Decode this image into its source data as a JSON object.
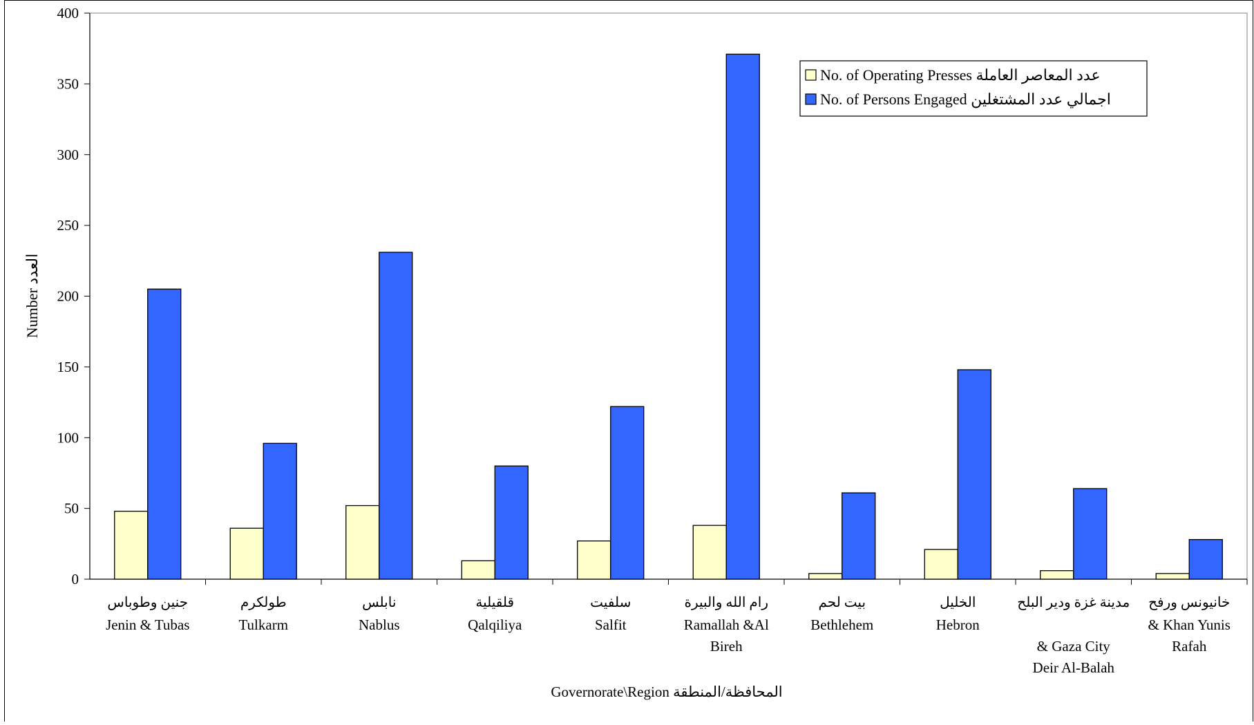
{
  "chart_data": {
    "type": "bar",
    "title": "",
    "xlabel": "Governorate\\Region  المحافظة/المنطقة",
    "ylabel": "Number  العدد",
    "ylim": [
      0,
      400
    ],
    "yticks": [
      0,
      50,
      100,
      150,
      200,
      250,
      300,
      350,
      400
    ],
    "grid": false,
    "legend_position": "top-right",
    "categories": [
      {
        "ar": "جنين وطوباس",
        "en": [
          "Jenin & Tubas"
        ]
      },
      {
        "ar": "طولكرم",
        "en": [
          "Tulkarm"
        ]
      },
      {
        "ar": "نابلس",
        "en": [
          "Nablus"
        ]
      },
      {
        "ar": "قلقيلية",
        "en": [
          "Qalqiliya"
        ]
      },
      {
        "ar": "سلفيت",
        "en": [
          "Salfit"
        ]
      },
      {
        "ar": "رام الله والبيرة",
        "en": [
          "Ramallah &Al",
          "Bireh"
        ]
      },
      {
        "ar": "بيت لحم",
        "en": [
          "Bethlehem"
        ]
      },
      {
        "ar": "الخليل",
        "en": [
          "Hebron"
        ]
      },
      {
        "ar": "مدينة غزة ودير البلح",
        "en": [
          "",
          "& Gaza City",
          "Deir Al-Balah"
        ]
      },
      {
        "ar": "خانيونس ورفح",
        "en": [
          "& Khan Yunis",
          "Rafah"
        ]
      }
    ],
    "series": [
      {
        "name": "No. of  Operating Presses عدد المعاصر  العاملة",
        "color": "#ffffcc",
        "values": [
          48,
          36,
          52,
          13,
          27,
          38,
          4,
          21,
          6,
          4
        ]
      },
      {
        "name": "No. of  Persons  Engaged اجمالي عدد المشتغلين",
        "color": "#3366ff",
        "values": [
          205,
          96,
          231,
          80,
          122,
          371,
          61,
          148,
          64,
          28
        ]
      }
    ]
  }
}
